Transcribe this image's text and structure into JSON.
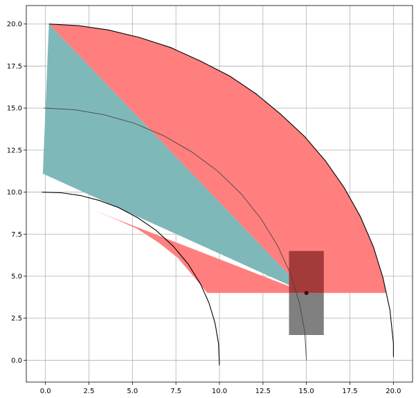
{
  "chart_data": {
    "type": "area",
    "xlim": [
      -1.1,
      21.1
    ],
    "ylim": [
      -1.3,
      21.1
    ],
    "grid": true,
    "x_ticks": [
      {
        "value": 0,
        "label": "0.0"
      },
      {
        "value": 2.5,
        "label": "2.5"
      },
      {
        "value": 5,
        "label": "5.0"
      },
      {
        "value": 7.5,
        "label": "7.5"
      },
      {
        "value": 10,
        "label": "10.0"
      },
      {
        "value": 12.5,
        "label": "12.5"
      },
      {
        "value": 15,
        "label": "15.0"
      },
      {
        "value": 17.5,
        "label": "17.5"
      },
      {
        "value": 20,
        "label": "20.0"
      }
    ],
    "y_ticks": [
      {
        "value": 0,
        "label": "0.0"
      },
      {
        "value": 2.5,
        "label": "2.5"
      },
      {
        "value": 5,
        "label": "5.0"
      },
      {
        "value": 7.5,
        "label": "7.5"
      },
      {
        "value": 10,
        "label": "10.0"
      },
      {
        "value": 12.5,
        "label": "12.5"
      },
      {
        "value": 15,
        "label": "15.0"
      },
      {
        "value": 17.5,
        "label": "17.5"
      },
      {
        "value": 20,
        "label": "20.0"
      }
    ],
    "colors": {
      "red_region": "#ff7f7f",
      "teal_region": "#7fb8b8",
      "dark_teal": "#1f6f6f",
      "gray_rect": "#808080",
      "dark_red_rect": "#a33b3b",
      "curve": "#000000",
      "mid_curve": "#444444"
    },
    "arcs": [
      {
        "name": "inner",
        "radius": 10,
        "points": [
          [
            -0.2,
            10.0
          ],
          [
            0.9,
            9.96
          ],
          [
            2.0,
            9.8
          ],
          [
            3.1,
            9.5
          ],
          [
            4.2,
            9.08
          ],
          [
            5.3,
            8.48
          ],
          [
            6.35,
            7.73
          ],
          [
            7.35,
            6.78
          ],
          [
            8.2,
            5.72
          ],
          [
            8.9,
            4.56
          ],
          [
            9.4,
            3.41
          ],
          [
            9.75,
            2.2
          ],
          [
            9.95,
            1.0
          ],
          [
            10.0,
            -0.3
          ]
        ]
      },
      {
        "name": "middle",
        "radius": 15,
        "points": [
          [
            -0.1,
            15.0
          ],
          [
            1.7,
            14.9
          ],
          [
            3.4,
            14.6
          ],
          [
            5.1,
            14.1
          ],
          [
            6.8,
            13.35
          ],
          [
            8.4,
            12.4
          ],
          [
            9.9,
            11.25
          ],
          [
            11.25,
            9.9
          ],
          [
            12.4,
            8.4
          ],
          [
            13.35,
            6.8
          ],
          [
            14.1,
            5.1
          ],
          [
            14.6,
            3.4
          ],
          [
            14.9,
            1.7
          ],
          [
            15.0,
            0.0
          ]
        ]
      },
      {
        "name": "outer",
        "radius": 20,
        "points": [
          [
            0.2,
            20.0
          ],
          [
            1.9,
            19.9
          ],
          [
            3.6,
            19.65
          ],
          [
            5.4,
            19.2
          ],
          [
            7.2,
            18.6
          ],
          [
            8.9,
            17.8
          ],
          [
            10.6,
            16.9
          ],
          [
            12.1,
            15.85
          ],
          [
            13.5,
            14.65
          ],
          [
            14.9,
            13.3
          ],
          [
            16.1,
            11.85
          ],
          [
            17.15,
            10.3
          ],
          [
            18.1,
            8.55
          ],
          [
            18.85,
            6.75
          ],
          [
            19.4,
            4.9
          ],
          [
            19.8,
            3.0
          ],
          [
            20.0,
            1.0
          ],
          [
            20.0,
            0.2
          ]
        ]
      }
    ],
    "regions": [
      {
        "name": "red-fan",
        "color": "red_region",
        "points": [
          [
            0.2,
            20.0
          ],
          [
            1.9,
            19.9
          ],
          [
            3.6,
            19.65
          ],
          [
            5.4,
            19.2
          ],
          [
            7.2,
            18.6
          ],
          [
            8.9,
            17.8
          ],
          [
            10.6,
            16.9
          ],
          [
            12.1,
            15.85
          ],
          [
            13.5,
            14.65
          ],
          [
            14.9,
            13.3
          ],
          [
            16.1,
            11.85
          ],
          [
            17.15,
            10.3
          ],
          [
            18.1,
            8.55
          ],
          [
            18.85,
            6.75
          ],
          [
            19.4,
            4.9
          ],
          [
            19.6,
            4.0
          ],
          [
            9.3,
            4.0
          ],
          [
            8.5,
            5.0
          ],
          [
            7.6,
            6.1
          ],
          [
            6.5,
            7.0
          ],
          [
            5.3,
            7.8
          ],
          [
            4.0,
            8.4
          ],
          [
            2.7,
            8.95
          ],
          [
            15.0,
            4.0
          ],
          [
            0.2,
            20.0
          ]
        ]
      },
      {
        "name": "teal-fan",
        "color": "teal_region",
        "points": [
          [
            0.2,
            20.0
          ],
          [
            -0.15,
            11.1
          ],
          [
            15.0,
            4.0
          ]
        ]
      }
    ],
    "rects": [
      {
        "name": "gray-rect",
        "color": "gray_rect",
        "x": [
          14.0,
          16.0
        ],
        "y": [
          1.5,
          4.0
        ]
      },
      {
        "name": "dark-red-rect",
        "color": "dark_red_rect",
        "x": [
          14.0,
          16.0
        ],
        "y": [
          4.0,
          6.5
        ]
      }
    ],
    "focal_point": [
      15.0,
      4.0
    ]
  }
}
